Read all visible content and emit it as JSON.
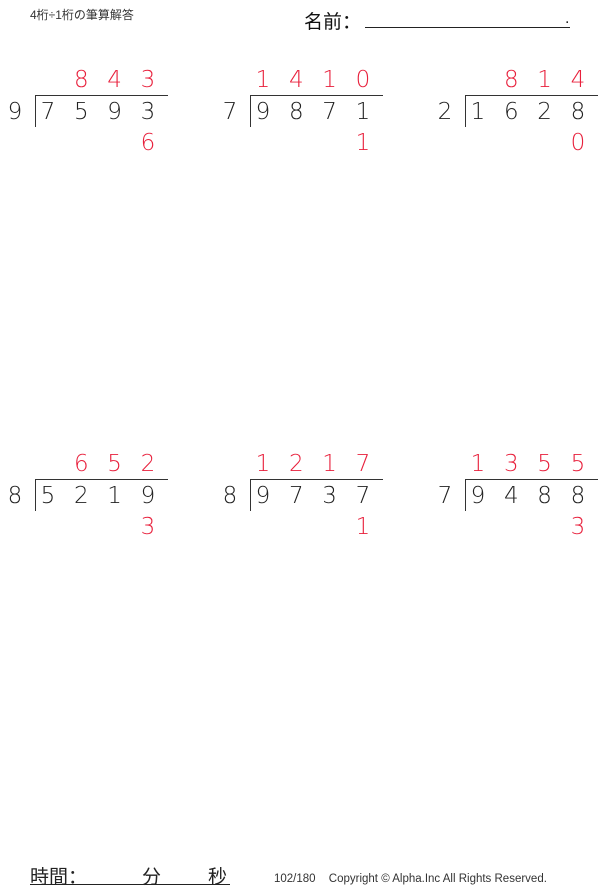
{
  "header": {
    "title": "4桁÷1桁の筆算解答",
    "name_label": "名前：",
    "name_end": "."
  },
  "colors": {
    "answer": "#e8203c",
    "text": "#222222"
  },
  "problems": [
    {
      "divisor": "9",
      "dividend": [
        "7",
        "5",
        "9",
        "3"
      ],
      "quotient": [
        "",
        "8",
        "4",
        "3"
      ],
      "remainder": "6"
    },
    {
      "divisor": "7",
      "dividend": [
        "9",
        "8",
        "7",
        "1"
      ],
      "quotient": [
        "1",
        "4",
        "1",
        "0"
      ],
      "remainder": "1"
    },
    {
      "divisor": "2",
      "dividend": [
        "1",
        "6",
        "2",
        "8"
      ],
      "quotient": [
        "",
        "8",
        "1",
        "4"
      ],
      "remainder": "0"
    },
    {
      "divisor": "8",
      "dividend": [
        "5",
        "2",
        "1",
        "9"
      ],
      "quotient": [
        "",
        "6",
        "5",
        "2"
      ],
      "remainder": "3"
    },
    {
      "divisor": "8",
      "dividend": [
        "9",
        "7",
        "3",
        "7"
      ],
      "quotient": [
        "1",
        "2",
        "1",
        "7"
      ],
      "remainder": "1"
    },
    {
      "divisor": "7",
      "dividend": [
        "9",
        "4",
        "8",
        "8"
      ],
      "quotient": [
        "1",
        "3",
        "5",
        "5"
      ],
      "remainder": "3"
    }
  ],
  "footer": {
    "time_label": "時間：",
    "minutes_label": "分",
    "seconds_label": "秒",
    "page": "102/180",
    "copyright": "Copyright © Alpha.Inc All Rights Reserved."
  }
}
